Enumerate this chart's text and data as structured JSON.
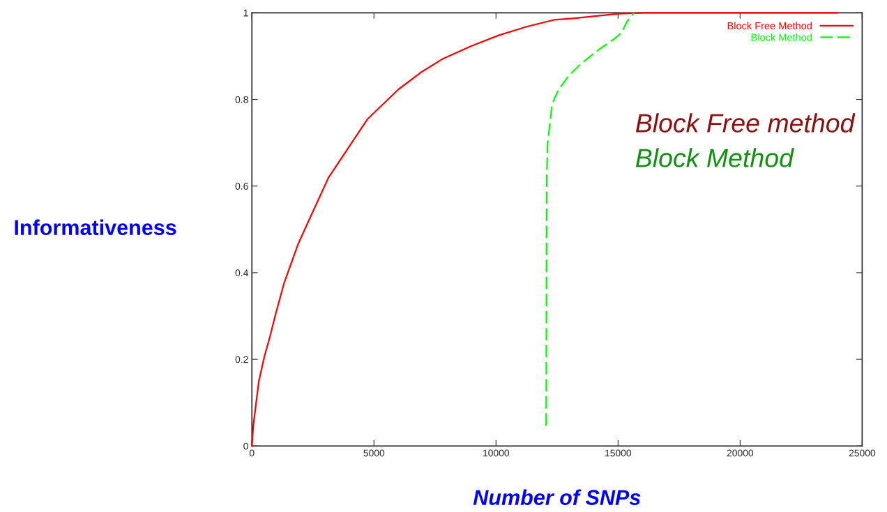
{
  "chart_data": {
    "type": "line",
    "xlabel": "Number of SNPs",
    "ylabel": "Informativeness",
    "xlim": [
      0,
      25000
    ],
    "ylim": [
      0,
      1
    ],
    "xticks": [
      0,
      5000,
      10000,
      15000,
      20000,
      25000
    ],
    "yticks": [
      0,
      0.2,
      0.4,
      0.6,
      0.8,
      1
    ],
    "grid": false,
    "legend": "top right",
    "series": [
      {
        "name": "Block Free Method",
        "color": "#ff0000",
        "line_style": "solid",
        "x": [
          0,
          57,
          286,
          514,
          743,
          971,
          1314,
          1886,
          2457,
          3143,
          3829,
          4743,
          6000,
          6914,
          7829,
          8971,
          10114,
          11257,
          12400,
          13160,
          15030,
          16100,
          24000
        ],
        "values": [
          0,
          0.047,
          0.15,
          0.207,
          0.253,
          0.304,
          0.375,
          0.465,
          0.536,
          0.62,
          0.678,
          0.755,
          0.823,
          0.862,
          0.894,
          0.923,
          0.948,
          0.968,
          0.984,
          0.987,
          0.998,
          1.0,
          1.0
        ]
      },
      {
        "name": "Block Method",
        "color": "#00ff00",
        "line_style": "dashed",
        "x": [
          12054,
          12080,
          12111,
          12194,
          12286,
          12400,
          12571,
          12986,
          13451,
          14211,
          14851,
          15143,
          15371,
          15657
        ],
        "values": [
          0.047,
          0.62,
          0.697,
          0.737,
          0.783,
          0.803,
          0.823,
          0.855,
          0.881,
          0.915,
          0.94,
          0.954,
          0.98,
          1.0
        ]
      }
    ],
    "annotations": [
      "Block Free method",
      "Block Method"
    ]
  }
}
